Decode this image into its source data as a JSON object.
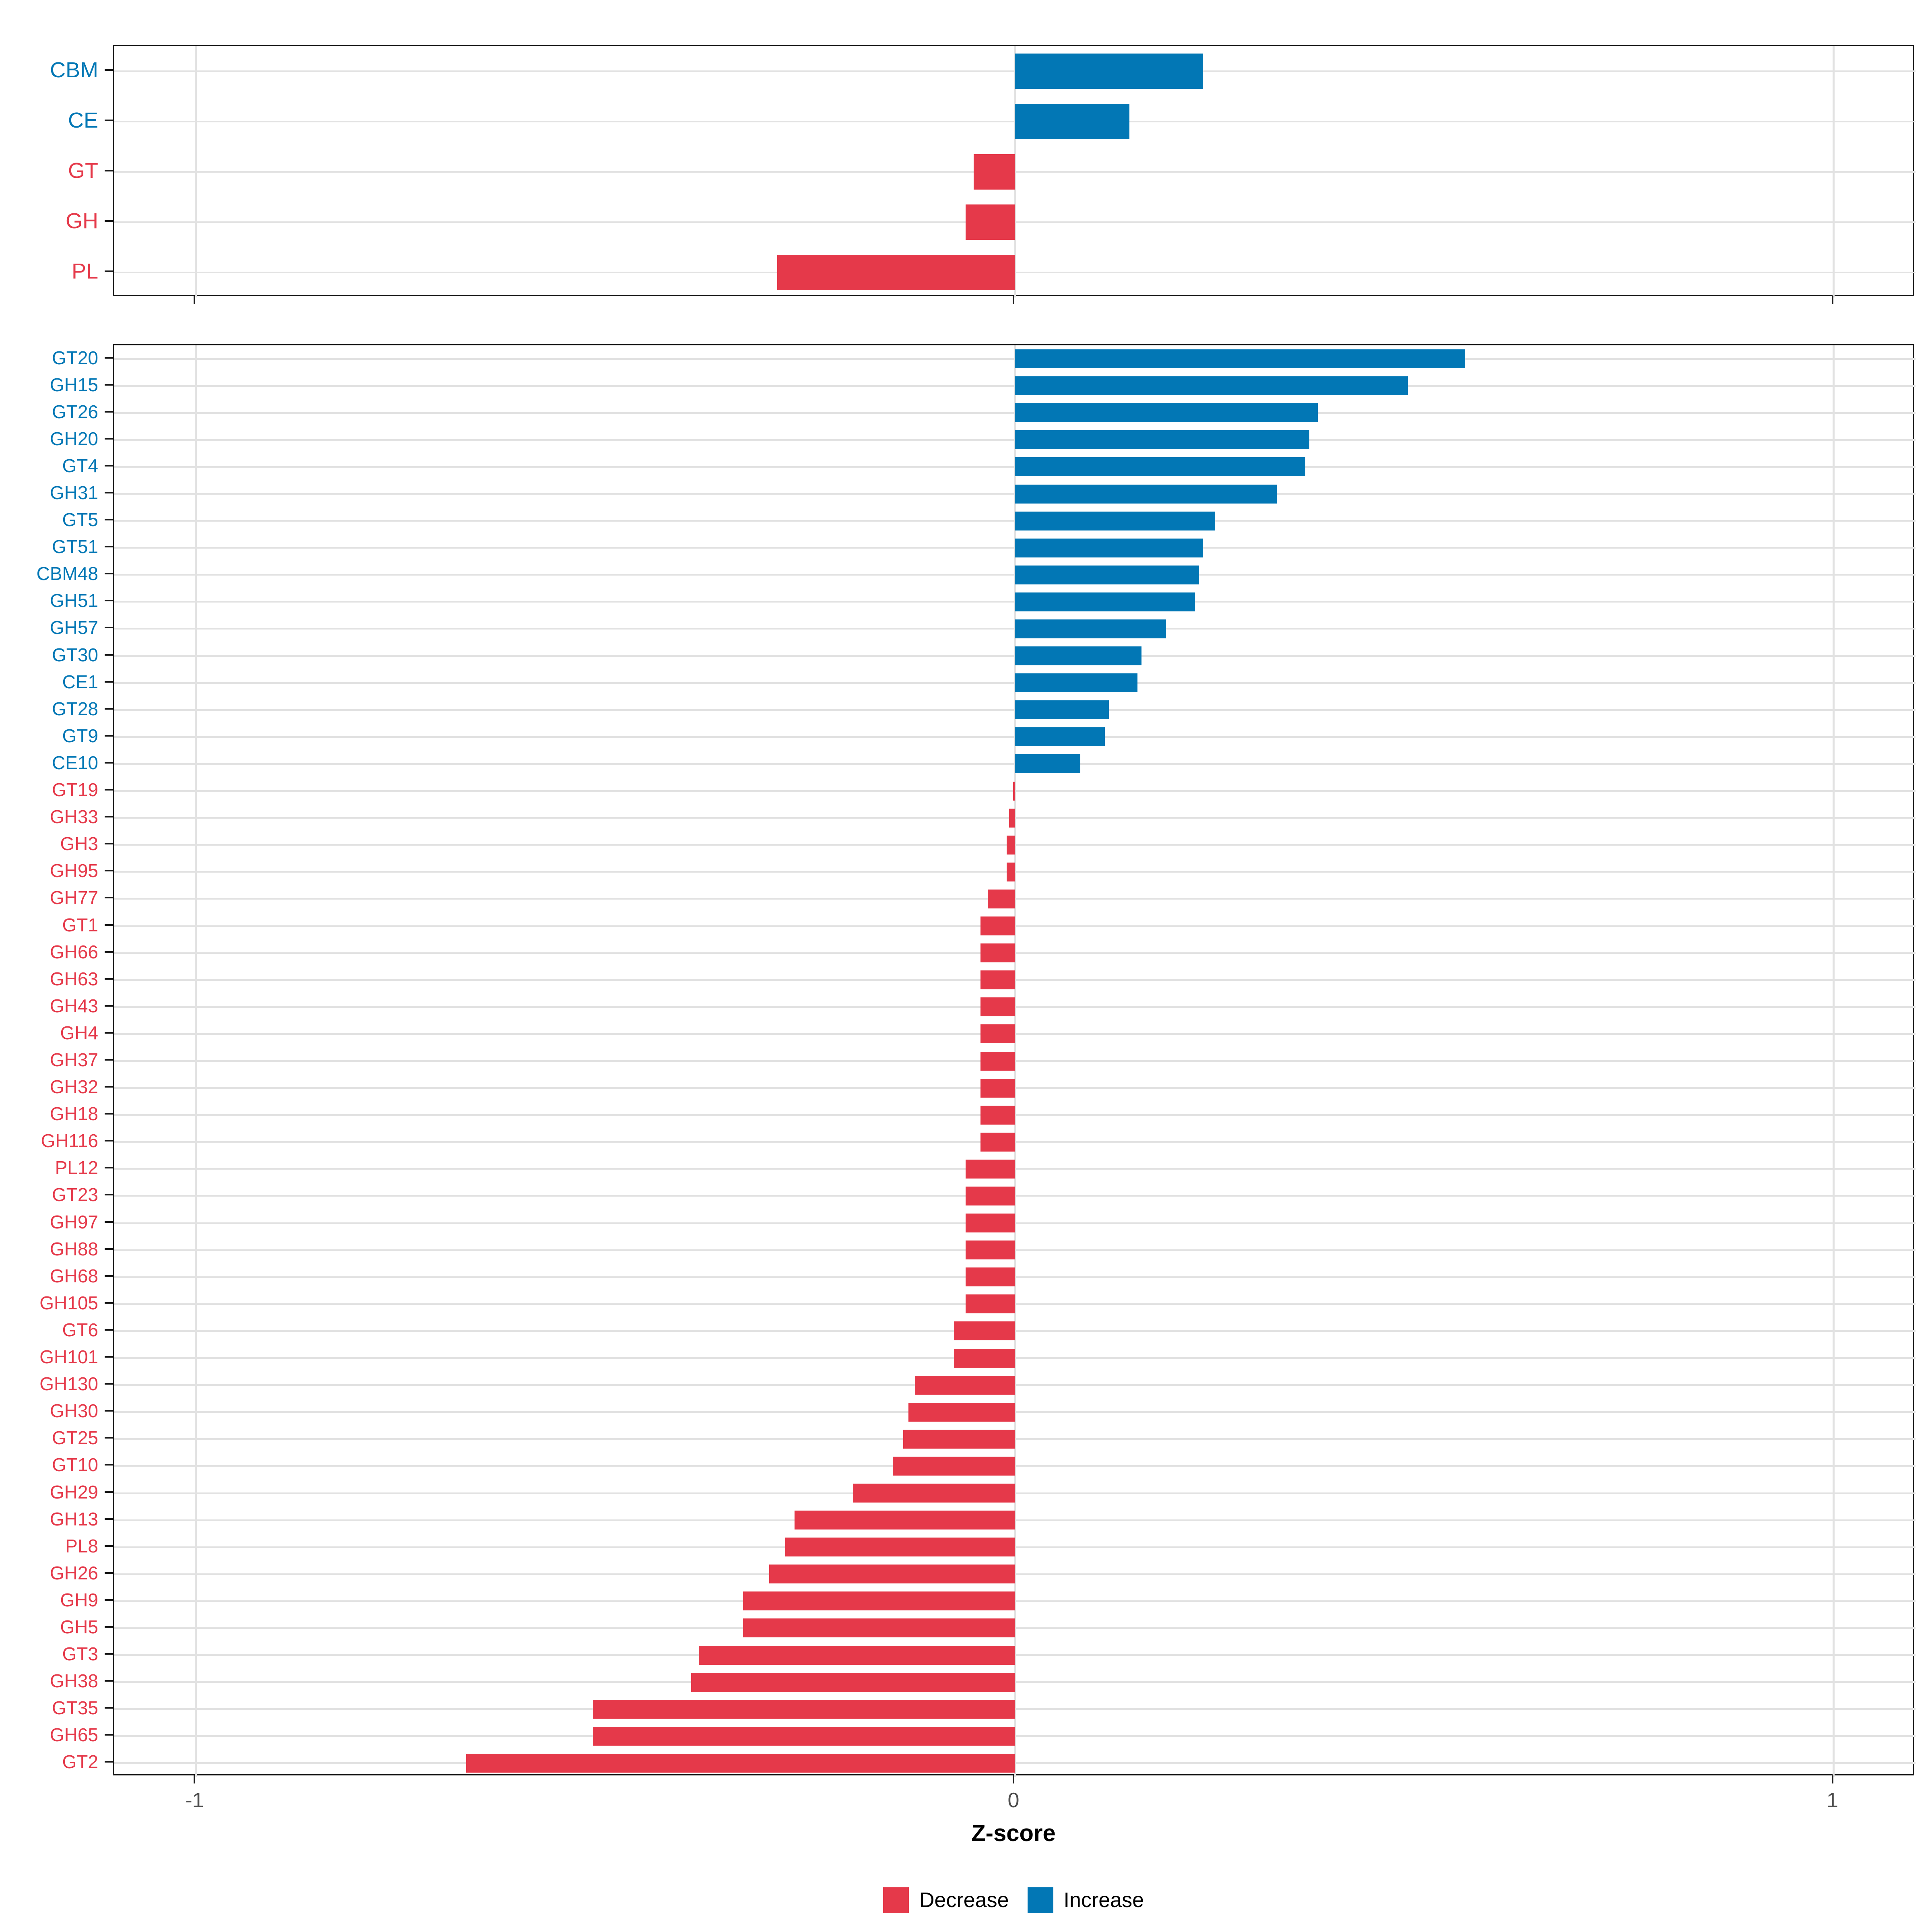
{
  "chart_data": [
    {
      "type": "bar",
      "orientation": "horizontal",
      "panel": "cazyme-classes",
      "categories": [
        "CBM",
        "CE",
        "GT",
        "GH",
        "PL"
      ],
      "values": [
        0.23,
        0.14,
        -0.05,
        -0.06,
        -0.29
      ],
      "xlim": [
        -1.1,
        1.1
      ],
      "grid": true,
      "legend_position": "bottom"
    },
    {
      "type": "bar",
      "orientation": "horizontal",
      "panel": "cazyme-families",
      "categories": [
        "GT20",
        "GH15",
        "GT26",
        "GH20",
        "GT4",
        "GH31",
        "GT5",
        "GT51",
        "CBM48",
        "GH51",
        "GH57",
        "GT30",
        "CE1",
        "GT28",
        "GT9",
        "CE10",
        "GT19",
        "GH33",
        "GH3",
        "GH95",
        "GH77",
        "GT1",
        "GH66",
        "GH63",
        "GH43",
        "GH4",
        "GH37",
        "GH32",
        "GH18",
        "GH116",
        "PL12",
        "GT23",
        "GH97",
        "GH88",
        "GH68",
        "GH105",
        "GT6",
        "GH101",
        "GH130",
        "GH30",
        "GT25",
        "GT10",
        "GH29",
        "GH13",
        "PL8",
        "GH26",
        "GH9",
        "GH5",
        "GT3",
        "GH38",
        "GT35",
        "GH65",
        "GT2"
      ],
      "values": [
        0.55,
        0.48,
        0.37,
        0.36,
        0.355,
        0.32,
        0.245,
        0.23,
        0.225,
        0.22,
        0.185,
        0.155,
        0.15,
        0.115,
        0.11,
        0.08,
        -0.002,
        -0.007,
        -0.01,
        -0.01,
        -0.033,
        -0.042,
        -0.042,
        -0.042,
        -0.042,
        -0.042,
        -0.042,
        -0.042,
        -0.042,
        -0.042,
        -0.06,
        -0.06,
        -0.06,
        -0.06,
        -0.06,
        -0.06,
        -0.074,
        -0.074,
        -0.122,
        -0.13,
        -0.136,
        -0.149,
        -0.197,
        -0.269,
        -0.28,
        -0.3,
        -0.332,
        -0.332,
        -0.386,
        -0.395,
        -0.515,
        -0.515,
        -0.67
      ],
      "xlim": [
        -1.1,
        1.1
      ],
      "grid": true,
      "legend_position": "bottom"
    }
  ],
  "axis": {
    "title": "Z-score",
    "ticks": [
      {
        "label": "-1",
        "value": -1
      },
      {
        "label": "0",
        "value": 0
      },
      {
        "label": "1",
        "value": 1
      }
    ]
  },
  "legend": {
    "items": [
      {
        "label": "Decrease",
        "color": "#E5394A"
      },
      {
        "label": "Increase",
        "color": "#0277B5"
      }
    ]
  },
  "colors": {
    "decrease": "#E5394A",
    "increase": "#0277B5",
    "gridline": "#E2E2E2",
    "axis_text": "#4D4D4D",
    "panel_border": "#1A1A1A"
  }
}
